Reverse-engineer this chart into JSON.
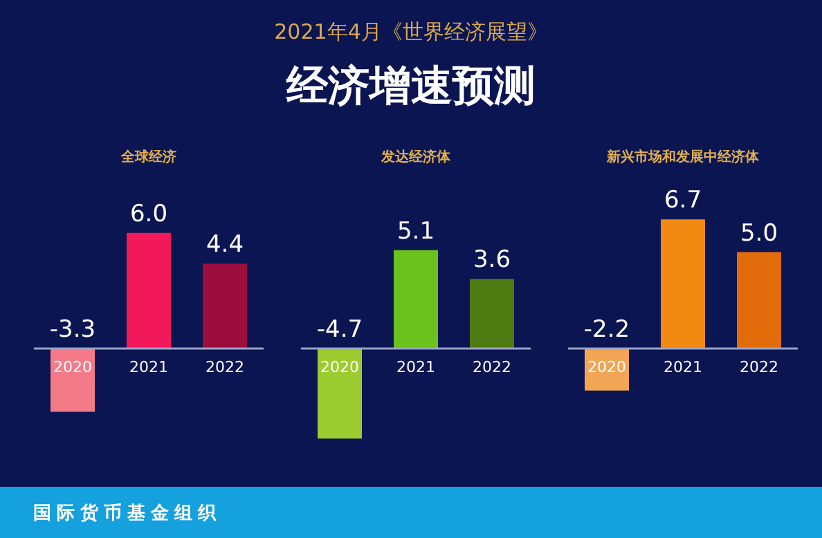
{
  "chart_data": [
    {
      "type": "bar",
      "title": "全球经济",
      "categories": [
        "2020",
        "2021",
        "2022"
      ],
      "values": [
        -3.3,
        6.0,
        4.4
      ],
      "value_labels": [
        "-3.3",
        "6.0",
        "4.4"
      ],
      "colors": [
        "#f47a88",
        "#f2185a",
        "#9c0c3c"
      ],
      "annotations": [
        "2021年4月《世界经济展望》",
        "经济增速预测",
        "国际货币基金组织"
      ]
    },
    {
      "type": "bar",
      "title": "发达经济体",
      "categories": [
        "2020",
        "2021",
        "2022"
      ],
      "values": [
        -4.7,
        5.1,
        3.6
      ],
      "value_labels": [
        "-4.7",
        "5.1",
        "3.6"
      ],
      "colors": [
        "#9ccc30",
        "#6cc21c",
        "#4f7c12"
      ]
    },
    {
      "type": "bar",
      "title": "新兴市场和发展中经济体",
      "categories": [
        "2020",
        "2021",
        "2022"
      ],
      "values": [
        -2.2,
        6.7,
        5.0
      ],
      "value_labels": [
        "-2.2",
        "6.7",
        "5.0"
      ],
      "colors": [
        "#f2a555",
        "#f08a12",
        "#e26c0a"
      ]
    }
  ]
}
